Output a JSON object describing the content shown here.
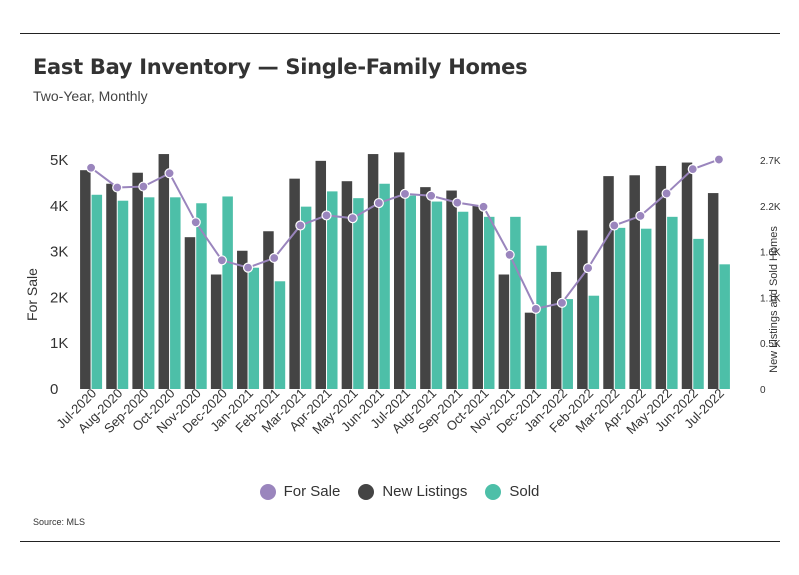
{
  "header": {
    "title": "East Bay Inventory — Single-Family Homes",
    "subtitle": "Two-Year, Monthly"
  },
  "footer": {
    "source": "Source:  MLS"
  },
  "colors": {
    "for_sale": "#9a85bd",
    "new_listings": "#444444",
    "sold": "#4dbfa8"
  },
  "chart_data": {
    "type": "bar",
    "categories": [
      "Jul-2020",
      "Aug-2020",
      "Sep-2020",
      "Oct-2020",
      "Nov-2020",
      "Dec-2020",
      "Jan-2021",
      "Feb-2021",
      "Mar-2021",
      "Apr-2021",
      "May-2021",
      "Jun-2021",
      "Jul-2021",
      "Aug-2021",
      "Sep-2021",
      "Oct-2021",
      "Nov-2021",
      "Dec-2021",
      "Jan-2022",
      "Feb-2022",
      "Mar-2022",
      "Apr-2022",
      "May-2022",
      "Jun-2022",
      "Jul-2022"
    ],
    "series": [
      {
        "name": "For Sale",
        "type": "line",
        "axis": "left",
        "values": [
          4830,
          4400,
          4420,
          4710,
          3640,
          2810,
          2650,
          2860,
          3570,
          3790,
          3730,
          4060,
          4260,
          4220,
          4070,
          3980,
          2930,
          1750,
          1880,
          2640,
          3570,
          3780,
          4270,
          4800,
          5010
        ]
      },
      {
        "name": "New Listings",
        "type": "bar",
        "axis": "right",
        "values": [
          2580,
          2420,
          2550,
          2770,
          1790,
          1350,
          1630,
          1860,
          2480,
          2690,
          2450,
          2770,
          2790,
          2380,
          2340,
          2160,
          1350,
          900,
          1380,
          1870,
          2510,
          2520,
          2630,
          2670,
          2310
        ]
      },
      {
        "name": "Sold",
        "type": "bar",
        "axis": "right",
        "values": [
          2290,
          2220,
          2260,
          2260,
          2190,
          2270,
          1430,
          1270,
          2150,
          2330,
          2250,
          2420,
          2280,
          2210,
          2090,
          2030,
          2030,
          1690,
          1060,
          1100,
          1900,
          1890,
          2030,
          1770,
          1470
        ]
      }
    ],
    "y_left": {
      "label": "For Sale",
      "ticks": [
        "0",
        "1K",
        "2K",
        "3K",
        "4K",
        "5K"
      ],
      "range": [
        0,
        5000
      ]
    },
    "y_right": {
      "label": "New Listings and Sold Homes",
      "ticks": [
        "0",
        "0.5K",
        "1.1K",
        "1.6K",
        "2.2K",
        "2.7K"
      ],
      "range": [
        0,
        2700
      ]
    },
    "legend": {
      "position": "bottom-center",
      "labels": [
        "For Sale",
        "New Listings",
        "Sold"
      ]
    },
    "grid": false
  }
}
